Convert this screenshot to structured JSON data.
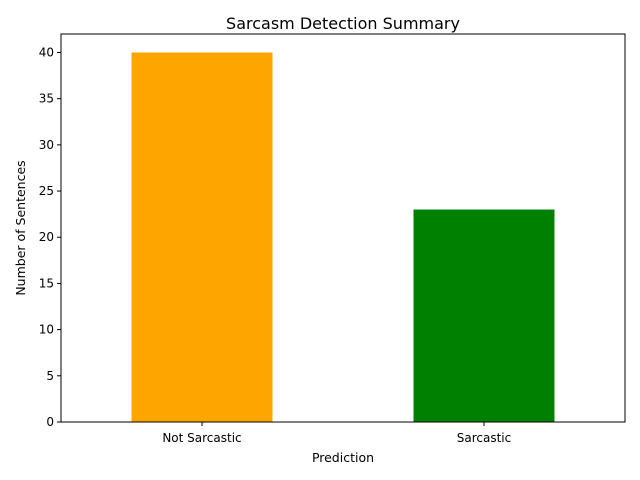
{
  "chart_data": {
    "type": "bar",
    "title": "Sarcasm Detection Summary",
    "xlabel": "Prediction",
    "ylabel": "Number of Sentences",
    "categories": [
      "Not Sarcastic",
      "Sarcastic"
    ],
    "values": [
      40,
      23
    ],
    "bar_colors": [
      "#ffa500",
      "#008000"
    ],
    "ylim": [
      0,
      42
    ],
    "yticks": [
      0,
      5,
      10,
      15,
      20,
      25,
      30,
      35,
      40
    ],
    "grid": false,
    "legend": "none"
  }
}
